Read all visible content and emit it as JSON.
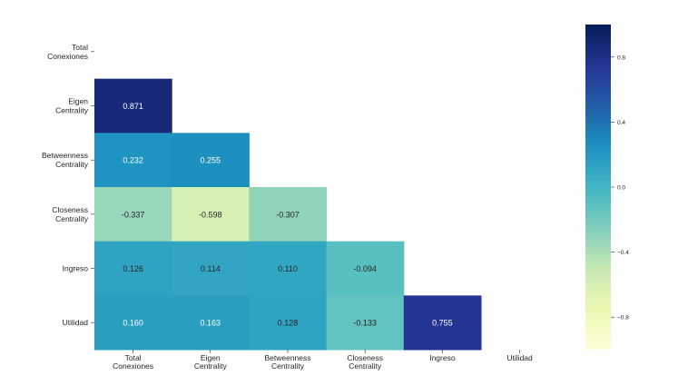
{
  "chart_data": {
    "type": "heatmap",
    "row_labels": [
      [
        "Total",
        "Conexiones"
      ],
      [
        "Eigen",
        "Centrality"
      ],
      [
        "Betweenness",
        "Centrality"
      ],
      [
        "Closeness",
        "Centrality"
      ],
      [
        "Ingreso"
      ],
      [
        "Utilidad"
      ]
    ],
    "col_labels": [
      [
        "Total",
        "Conexiones"
      ],
      [
        "Eigen",
        "Centrality"
      ],
      [
        "Betweenness",
        "Centrality"
      ],
      [
        "Closeness",
        "Centrality"
      ],
      [
        "Ingreso"
      ],
      [
        "Utilidad"
      ]
    ],
    "mask": "upper-triangle-including-diagonal",
    "cells": [
      {
        "row": 1,
        "col": 0,
        "value": 0.871,
        "label": "0.871"
      },
      {
        "row": 2,
        "col": 0,
        "value": 0.232,
        "label": "0.232"
      },
      {
        "row": 2,
        "col": 1,
        "value": 0.255,
        "label": "0.255"
      },
      {
        "row": 3,
        "col": 0,
        "value": -0.337,
        "label": "-0.337"
      },
      {
        "row": 3,
        "col": 1,
        "value": -0.598,
        "label": "-0.598"
      },
      {
        "row": 3,
        "col": 2,
        "value": -0.307,
        "label": "-0.307"
      },
      {
        "row": 4,
        "col": 0,
        "value": 0.126,
        "label": "0.126"
      },
      {
        "row": 4,
        "col": 1,
        "value": 0.114,
        "label": "0.114"
      },
      {
        "row": 4,
        "col": 2,
        "value": 0.11,
        "label": "0.110"
      },
      {
        "row": 4,
        "col": 3,
        "value": -0.094,
        "label": "-0.094"
      },
      {
        "row": 5,
        "col": 0,
        "value": 0.16,
        "label": "0.160"
      },
      {
        "row": 5,
        "col": 1,
        "value": 0.163,
        "label": "0.163"
      },
      {
        "row": 5,
        "col": 2,
        "value": 0.128,
        "label": "0.128"
      },
      {
        "row": 5,
        "col": 3,
        "value": -0.133,
        "label": "-0.133"
      },
      {
        "row": 5,
        "col": 4,
        "value": 0.755,
        "label": "0.755"
      }
    ],
    "colorbar": {
      "colormap": "YlGnBu",
      "vmin": -1,
      "vmax": 1,
      "ticks": [
        {
          "value": 0.8,
          "label": "0.8"
        },
        {
          "value": 0.4,
          "label": "0.4"
        },
        {
          "value": 0.0,
          "label": "0.0"
        },
        {
          "value": -0.4,
          "label": "−0.4"
        },
        {
          "value": -0.8,
          "label": "−0.8"
        }
      ],
      "stops": [
        "#ffffd9",
        "#edf8b1",
        "#c7e9b4",
        "#7fcdbb",
        "#41b6c4",
        "#1d91c0",
        "#225ea8",
        "#253494",
        "#081d58"
      ]
    },
    "annotation_text_colors": {
      "dark_cell": "#ffffff",
      "light_cell": "#262626"
    }
  }
}
